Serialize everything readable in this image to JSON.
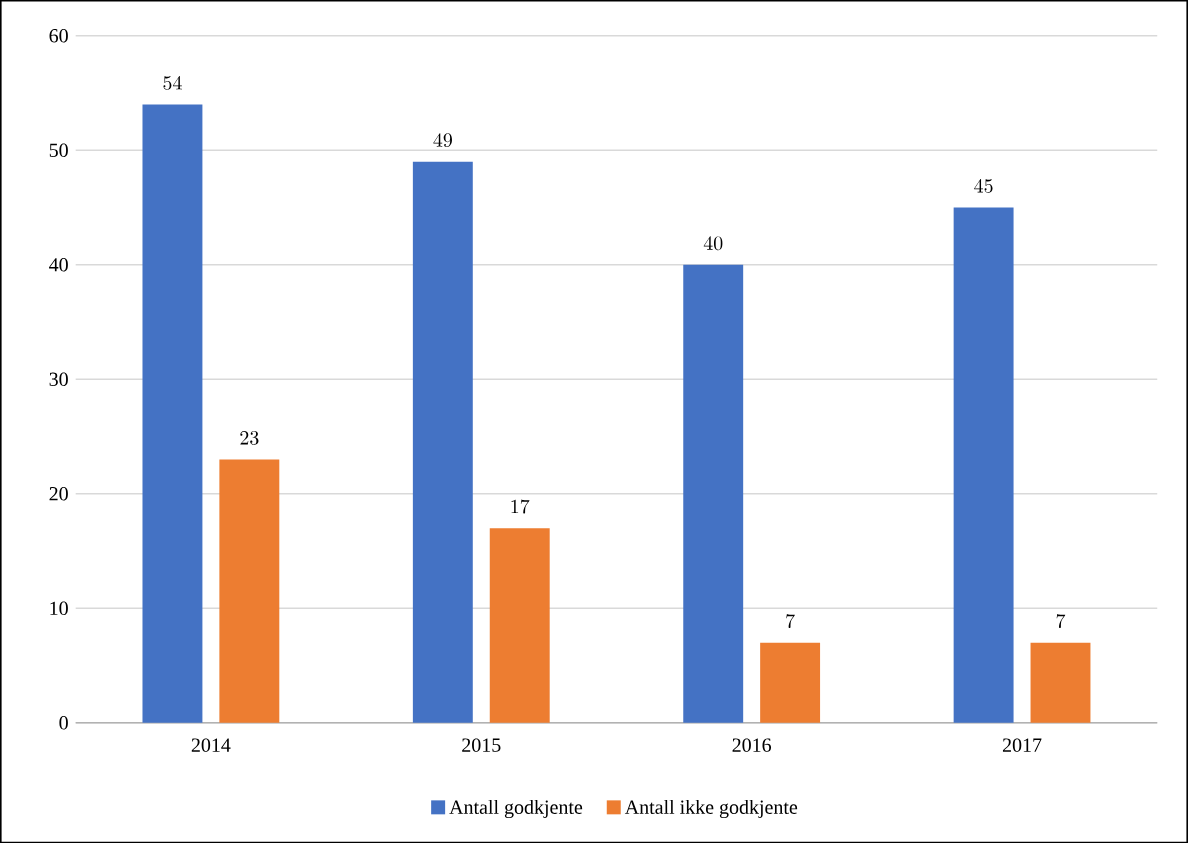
{
  "chart_data": {
    "type": "bar",
    "categories": [
      "2014",
      "2015",
      "2016",
      "2017"
    ],
    "series": [
      {
        "name": "Antall godkjente",
        "color": "#4472c4",
        "values": [
          54,
          49,
          40,
          45
        ]
      },
      {
        "name": "Antall ikke godkjente",
        "color": "#ed7d31",
        "values": [
          23,
          17,
          7,
          7
        ]
      }
    ],
    "ylim": [
      0,
      60
    ],
    "yticks": [
      0,
      10,
      20,
      30,
      40,
      50,
      60
    ],
    "grid": "y",
    "legend": "bottom",
    "data_labels": true
  }
}
